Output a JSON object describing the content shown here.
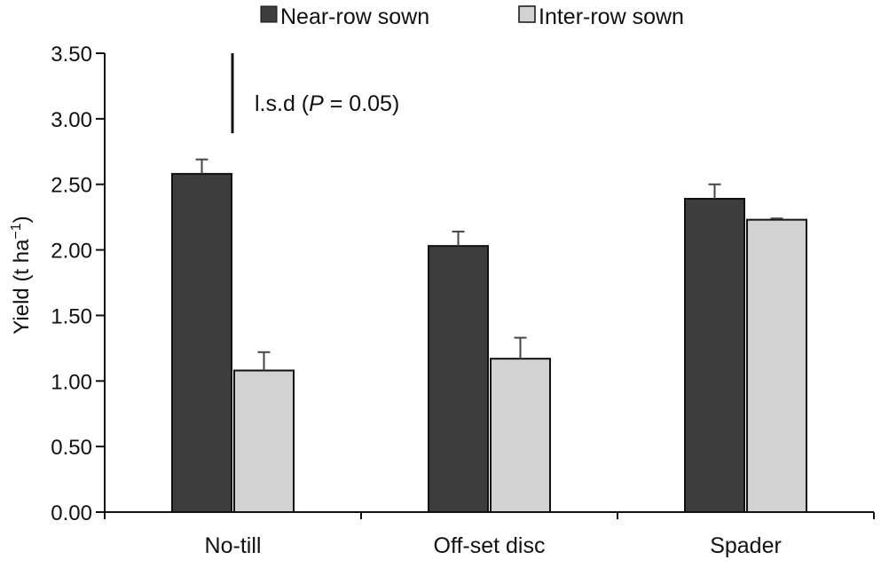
{
  "chart_data": {
    "type": "bar",
    "categories": [
      "No-till",
      "Off-set disc",
      "Spader"
    ],
    "series": [
      {
        "name": "Near-row sown",
        "values": [
          2.58,
          2.03,
          2.39
        ],
        "errors": [
          0.11,
          0.11,
          0.11
        ],
        "color": "#3d3d3d"
      },
      {
        "name": "Inter-row sown",
        "values": [
          1.08,
          1.17,
          2.23
        ],
        "errors": [
          0.14,
          0.16,
          0.01
        ],
        "color": "#d2d2d2"
      }
    ],
    "ylim": [
      0,
      3.5
    ],
    "yticks": [
      "0.00",
      "0.50",
      "1.00",
      "1.50",
      "2.00",
      "2.50",
      "3.00",
      "3.50"
    ],
    "ylabel": {
      "text": "Yield (t ha",
      "sup": "−1",
      "close": ")"
    },
    "xlabel": "",
    "legend_position": "top",
    "lsd": {
      "label_prefix": "l.s.d (",
      "label_p": "P",
      "label_suffix": " = 0.05)",
      "value": 0.61
    }
  }
}
